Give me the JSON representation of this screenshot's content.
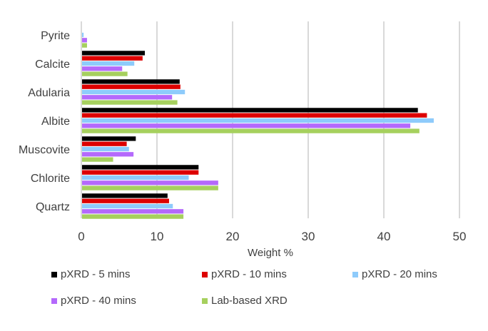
{
  "chart_data": {
    "type": "bar",
    "orientation": "horizontal",
    "title": "",
    "xlabel": "Weight %",
    "ylabel": "",
    "xlim": [
      0,
      50
    ],
    "xticks": [
      0,
      10,
      20,
      30,
      40,
      50
    ],
    "grid": true,
    "legend_position": "bottom",
    "categories": [
      "Pyrite",
      "Calcite",
      "Adularia",
      "Albite",
      "Muscovite",
      "Chlorite",
      "Quartz"
    ],
    "series": [
      {
        "name": "pXRD - 5 mins",
        "color": "#000000",
        "values": [
          0,
          8.4,
          13.0,
          44.5,
          7.2,
          15.5,
          11.4
        ]
      },
      {
        "name": "pXRD - 10 mins",
        "color": "#dd0000",
        "values": [
          0,
          8.1,
          13.1,
          45.7,
          6.0,
          15.5,
          11.6
        ]
      },
      {
        "name": "pXRD - 20 mins",
        "color": "#8ecbfb",
        "values": [
          0.3,
          7.0,
          13.7,
          46.6,
          6.3,
          14.2,
          12.1
        ]
      },
      {
        "name": "pXRD - 40 mins",
        "color": "#b469fc",
        "values": [
          0.75,
          5.4,
          12.0,
          43.5,
          6.9,
          18.1,
          13.5
        ]
      },
      {
        "name": "Lab-based XRD",
        "color": "#a6d05e",
        "values": [
          0.75,
          6.1,
          12.7,
          44.7,
          4.2,
          18.1,
          13.5
        ]
      }
    ]
  }
}
